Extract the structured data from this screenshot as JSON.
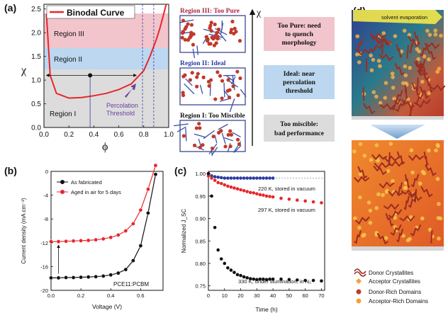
{
  "figure": {
    "panel_labels": {
      "a": "(a)",
      "b": "(b)",
      "c": "(c)",
      "d": "(d)"
    }
  },
  "panel_a": {
    "legend": "Binodal Curve",
    "ylabel": "χ",
    "xlabel": "ϕ",
    "region_labels": [
      "Region III",
      "Region II",
      "Region I"
    ],
    "annotation": [
      "Percolation",
      "Threshold"
    ],
    "region_headers": [
      "Region III: Too Pure",
      "Region II: Ideal",
      "Region I: Too Miscible"
    ],
    "arrow_label": "χ",
    "explanations": [
      [
        "Too Pure: need",
        "to quench",
        "morphology"
      ],
      [
        "Ideal: near",
        "percolation",
        "threshold"
      ],
      [
        "Too miscible:",
        "bad performance"
      ]
    ],
    "colors": {
      "region3": "#f2c4cc",
      "region2": "#bcd7ef",
      "region1": "#dcdcdc",
      "curve": "#e8262b",
      "annotation": "#6a3fa0"
    }
  },
  "panel_b": {
    "legend": [
      "As fabricated",
      "Aged in air for 5 days"
    ],
    "ylabel": "Current density (mA cm⁻²)",
    "xlabel": "Voltage (V)",
    "inset_label": "PCE11:PCBM",
    "colors": {
      "fab": "#111111",
      "aged": "#e8262b"
    }
  },
  "panel_c": {
    "ylabel": "Normalized J_SC",
    "xlabel": "Time (h)",
    "annotations": [
      "220 K, stored in vacuum",
      "297 K, stored in vacuum",
      "330 K, under illumination, in N₂"
    ],
    "colors": {
      "s220": "#2b3aa0",
      "s297": "#e8262b",
      "s330": "#111111"
    }
  },
  "panel_d": {
    "top_label": "solvent evaporation",
    "legend": [
      "Donor Crystallites",
      "Acceptor Crystallites",
      "Donor-Rich Domains",
      "Acceptor-Rich Domains"
    ],
    "colors": {
      "donor": "#c0392b",
      "acceptor": "#f2a33a",
      "arrow": "#f4e84a"
    }
  },
  "chart_data": [
    {
      "type": "line",
      "panel": "a",
      "series": [
        {
          "name": "Binodal Curve",
          "x": [
            0.02,
            0.05,
            0.1,
            0.2,
            0.3,
            0.4,
            0.5,
            0.6,
            0.7,
            0.8,
            0.85,
            0.9,
            0.93,
            0.96,
            0.98
          ],
          "y": [
            2.4,
            1.1,
            0.72,
            0.62,
            0.63,
            0.67,
            0.72,
            0.8,
            0.92,
            1.2,
            1.5,
            1.85,
            2.1,
            2.4,
            2.6
          ]
        }
      ],
      "xticks": [
        "0.0",
        "0.2",
        "0.4",
        "0.6",
        "0.8",
        "1.0"
      ],
      "yticks": [
        "0.0",
        "0.5",
        "1.0",
        "1.5",
        "2.0",
        "2.5"
      ],
      "xlim": [
        0,
        1.0
      ],
      "ylim": [
        0,
        2.6
      ],
      "region_bounds": {
        "region1": [
          0,
          1.25
        ],
        "region2": [
          1.25,
          1.8
        ],
        "region3": [
          1.8,
          2.6
        ]
      },
      "xlabel": "ϕ",
      "ylabel": "χ"
    },
    {
      "type": "line",
      "panel": "b",
      "x": [
        0.0,
        0.05,
        0.1,
        0.15,
        0.2,
        0.25,
        0.3,
        0.35,
        0.4,
        0.45,
        0.5,
        0.55,
        0.6,
        0.65,
        0.7
      ],
      "series": [
        {
          "name": "As fabricated",
          "values": [
            -17.9,
            -17.9,
            -17.85,
            -17.85,
            -17.8,
            -17.75,
            -17.7,
            -17.6,
            -17.4,
            -17.1,
            -16.5,
            -15.0,
            -12.5,
            -7.0,
            -0.5
          ]
        },
        {
          "name": "Aged in air for 5 days",
          "values": [
            -11.8,
            -11.8,
            -11.75,
            -11.7,
            -11.65,
            -11.6,
            -11.5,
            -11.35,
            -11.1,
            -10.7,
            -10.0,
            -8.8,
            -6.5,
            -3.0,
            1.0
          ]
        }
      ],
      "xticks": [
        "0.0",
        "0.2",
        "0.4",
        "0.6"
      ],
      "yticks": [
        "0",
        "-4",
        "-8",
        "-12",
        "-16",
        "-20"
      ],
      "xlim": [
        0,
        0.75
      ],
      "ylim": [
        -20,
        0
      ],
      "xlabel": "Voltage (V)",
      "ylabel": "Current density (mA cm⁻²)"
    },
    {
      "type": "scatter",
      "panel": "c",
      "x": [
        0,
        2,
        4,
        6,
        8,
        10,
        12,
        14,
        16,
        18,
        20,
        22,
        24,
        26,
        28,
        30,
        32,
        34,
        36,
        38,
        40,
        45,
        50,
        55,
        60,
        65,
        70
      ],
      "series": [
        {
          "name": "220 K, stored in vacuum",
          "values": [
            1.0,
            0.995,
            0.993,
            0.992,
            0.991,
            0.99,
            0.99,
            0.99,
            0.99,
            0.99,
            0.99,
            0.99,
            0.99,
            0.99,
            0.99,
            0.99,
            0.99,
            0.99,
            0.99,
            0.99,
            0.99,
            null,
            null,
            null,
            null,
            null,
            null
          ]
        },
        {
          "name": "297 K, stored in vacuum",
          "values": [
            0.995,
            0.99,
            0.985,
            0.98,
            0.978,
            0.975,
            0.972,
            0.97,
            0.968,
            0.966,
            0.964,
            0.962,
            0.96,
            0.958,
            0.957,
            0.955,
            0.953,
            0.952,
            0.95,
            0.949,
            0.948,
            0.945,
            0.943,
            0.941,
            0.939,
            0.937,
            0.935
          ]
        },
        {
          "name": "330 K, under illumination, in N₂",
          "values": [
            1.0,
            0.95,
            0.88,
            0.83,
            0.81,
            0.8,
            0.79,
            0.785,
            0.78,
            0.775,
            0.773,
            0.77,
            0.768,
            0.766,
            0.765,
            0.764,
            0.765,
            0.765,
            0.764,
            0.765,
            0.765,
            0.765,
            0.764,
            0.763,
            0.762,
            0.762,
            0.761
          ]
        }
      ],
      "xticks": [
        "0",
        "10",
        "20",
        "30",
        "40",
        "50",
        "60",
        "70"
      ],
      "yticks": [
        "0.75",
        "0.80",
        "0.85",
        "0.90",
        "0.95",
        "1.00"
      ],
      "xlim": [
        0,
        72
      ],
      "ylim": [
        0.74,
        1.005
      ],
      "xlabel": "Time (h)",
      "ylabel": "Normalized J_SC"
    }
  ]
}
